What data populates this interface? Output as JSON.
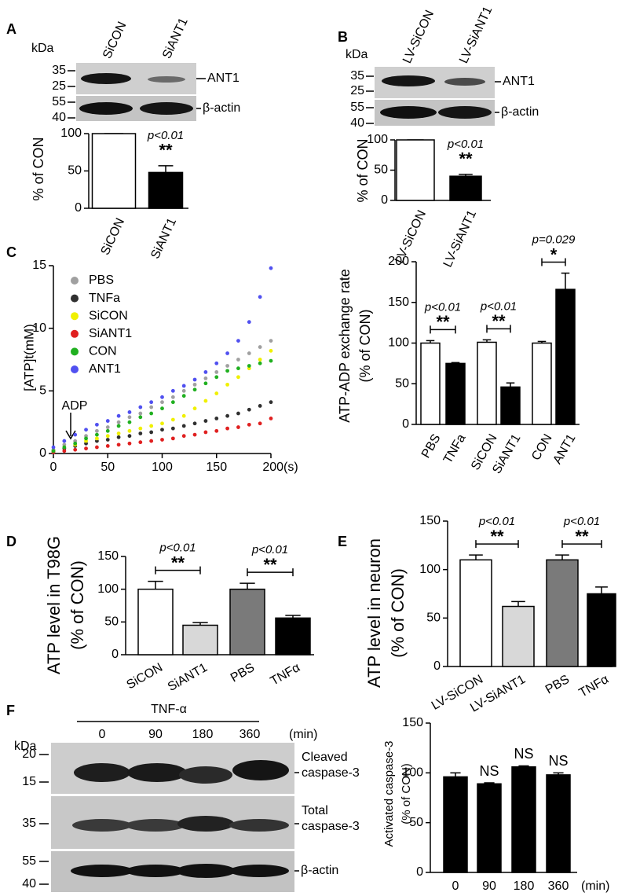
{
  "panel_labels": [
    "A",
    "B",
    "C",
    "D",
    "E",
    "F"
  ],
  "blots": [
    {
      "unit": "kDa",
      "lanes": [
        "SiCON",
        "SiANT1"
      ],
      "strips": [
        {
          "markers": [
            35,
            25
          ],
          "label": [
            "ANT1"
          ]
        },
        {
          "markers": [
            55,
            40
          ],
          "label": [
            "β-actin"
          ]
        }
      ]
    },
    {
      "unit": "kDa",
      "lanes": [
        "LV-SiCON",
        "LV-SiANT1"
      ],
      "strips": [
        {
          "markers": [
            35,
            25
          ],
          "label": [
            "ANT1"
          ]
        },
        {
          "markers": [
            55,
            40
          ],
          "label": [
            "β-actin"
          ]
        }
      ]
    },
    {
      "unit": "kDa",
      "treatment": "TNF-α",
      "lanes": [
        "0",
        "90",
        "180",
        "360"
      ],
      "time_unit": "(min)",
      "strips": [
        {
          "markers": [
            20,
            15
          ],
          "label": [
            "Cleaved",
            "caspase-3"
          ]
        },
        {
          "markers": [
            35
          ],
          "label": [
            "Total",
            "caspase-3"
          ]
        },
        {
          "markers": [
            55,
            40
          ],
          "label": [
            "β-actin"
          ]
        }
      ]
    }
  ],
  "chart_data": [
    {
      "type": "bar",
      "ylabel": [
        "% of CON"
      ],
      "categories": [
        "SiCON",
        "SiANT1"
      ],
      "values": [
        100,
        48
      ],
      "errors": [
        0,
        9
      ],
      "colors": [
        "#ffffff",
        "#000000"
      ],
      "ylim": [
        0,
        100
      ],
      "yticks": [
        0,
        50,
        100
      ],
      "annotations": [
        {
          "p": "p<0.01",
          "stars": "**"
        }
      ]
    },
    {
      "type": "bar",
      "ylabel": [
        "% of CON"
      ],
      "categories": [
        "LV-SiCON",
        "LV-SiANT1"
      ],
      "values": [
        100,
        40
      ],
      "errors": [
        0,
        3
      ],
      "colors": [
        "#ffffff",
        "#000000"
      ],
      "ylim": [
        0,
        100
      ],
      "yticks": [
        0,
        50,
        100
      ],
      "annotations": [
        {
          "p": "p<0.01",
          "stars": "**"
        }
      ]
    },
    {
      "type": "scatter",
      "ylabel": [
        "[ATP]t(mM)"
      ],
      "x": [
        0,
        10,
        20,
        30,
        40,
        50,
        60,
        70,
        80,
        90,
        100,
        110,
        120,
        130,
        140,
        150,
        160,
        170,
        180,
        190,
        200
      ],
      "xlim": [
        0,
        200
      ],
      "xticks": [
        0,
        50,
        100,
        150,
        {
          "value": 200,
          "label": "200(s)"
        }
      ],
      "ylim": [
        0,
        15
      ],
      "yticks": [
        0,
        5,
        10,
        15
      ],
      "annotations": [
        "ADP"
      ],
      "series": [
        {
          "name": "PBS",
          "color": "#a0a0a0",
          "values": [
            0.3,
            0.7,
            1.0,
            1.4,
            1.8,
            2.1,
            2.5,
            2.9,
            3.2,
            3.7,
            4.1,
            4.5,
            5.0,
            5.5,
            6.0,
            6.5,
            7.0,
            7.5,
            8.0,
            8.5,
            9.0
          ]
        },
        {
          "name": "TNFa",
          "color": "#303030",
          "values": [
            0.2,
            0.4,
            0.6,
            0.8,
            1.0,
            1.1,
            1.3,
            1.4,
            1.6,
            1.7,
            1.9,
            2.0,
            2.2,
            2.4,
            2.6,
            2.8,
            3.0,
            3.2,
            3.5,
            3.8,
            4.1
          ]
        },
        {
          "name": "SiCON",
          "color": "#f0f000",
          "values": [
            0.2,
            0.5,
            0.7,
            1.0,
            1.2,
            1.4,
            1.6,
            1.8,
            2.0,
            2.2,
            2.4,
            2.7,
            3.0,
            3.6,
            4.2,
            4.8,
            5.5,
            6.1,
            6.8,
            7.5,
            8.2
          ]
        },
        {
          "name": "SiANT1",
          "color": "#e02020",
          "values": [
            0.1,
            0.2,
            0.3,
            0.4,
            0.5,
            0.6,
            0.7,
            0.8,
            0.9,
            1.0,
            1.1,
            1.2,
            1.4,
            1.5,
            1.7,
            1.8,
            2.0,
            2.1,
            2.3,
            2.4,
            2.8
          ]
        },
        {
          "name": "CON",
          "color": "#20b020",
          "values": [
            0.2,
            0.5,
            0.8,
            1.2,
            1.5,
            1.8,
            2.2,
            2.5,
            2.9,
            3.2,
            3.6,
            4.1,
            4.6,
            5.1,
            5.6,
            6.1,
            6.6,
            6.8,
            7.0,
            7.2,
            7.4
          ]
        },
        {
          "name": "ANT1",
          "color": "#5050f0",
          "values": [
            0.5,
            1.0,
            1.5,
            1.9,
            2.3,
            2.6,
            3.0,
            3.3,
            3.7,
            4.1,
            4.5,
            5.0,
            5.4,
            5.9,
            6.5,
            7.2,
            8.0,
            9.0,
            10.5,
            12.5,
            14.8
          ]
        }
      ]
    },
    {
      "type": "bar",
      "ylabel": [
        "ATP-ADP exchange rate",
        "(% of CON)"
      ],
      "categories": [
        "PBS",
        "TNFa",
        "SiCON",
        "SiANT1",
        "CON",
        "ANT1"
      ],
      "values": [
        100,
        75,
        101,
        46,
        100,
        166
      ],
      "errors": [
        3,
        1,
        3,
        5,
        2,
        20
      ],
      "colors": [
        "#ffffff",
        "#000000",
        "#ffffff",
        "#000000",
        "#ffffff",
        "#000000"
      ],
      "ylim": [
        0,
        200
      ],
      "yticks": [
        0,
        50,
        100,
        150,
        200
      ],
      "annotations": [
        {
          "p": "p<0.01",
          "stars": "**"
        },
        {
          "p": "p<0.01",
          "stars": "**"
        },
        {
          "p": "p=0.029",
          "stars": "*"
        }
      ]
    },
    {
      "type": "bar",
      "ylabel": [
        "ATP level  in T98G",
        "(% of CON)"
      ],
      "categories": [
        "SiCON",
        "SiANT1",
        "PBS",
        "TNFα"
      ],
      "values": [
        100,
        45,
        100,
        56
      ],
      "errors": [
        12,
        4,
        9,
        4
      ],
      "colors": [
        "#ffffff",
        "#d8d8d8",
        "#7a7a7a",
        "#000000"
      ],
      "ylim": [
        0,
        150
      ],
      "yticks": [
        0,
        50,
        100,
        150
      ],
      "annotations": [
        {
          "p": "p<0.01",
          "stars": "**"
        },
        {
          "p": "p<0.01",
          "stars": "**"
        }
      ]
    },
    {
      "type": "bar",
      "ylabel": [
        "ATP level  in neuron",
        "(% of CON)"
      ],
      "categories": [
        "LV-SiCON",
        "LV-SiANT1",
        "PBS",
        "TNFα"
      ],
      "values": [
        110,
        62,
        110,
        75
      ],
      "errors": [
        5,
        5,
        5,
        7
      ],
      "colors": [
        "#ffffff",
        "#d8d8d8",
        "#7a7a7a",
        "#000000"
      ],
      "ylim": [
        0,
        150
      ],
      "yticks": [
        0,
        50,
        100,
        150
      ],
      "annotations": [
        {
          "p": "p<0.01",
          "stars": "**"
        },
        {
          "p": "p<0.01",
          "stars": "**"
        }
      ]
    },
    {
      "type": "bar",
      "ylabel": [
        "Activated caspase-3",
        "(% of CON)"
      ],
      "categories": [
        "0",
        "90",
        "180",
        "360"
      ],
      "xunit": "(min)",
      "values": [
        96,
        89,
        106,
        98
      ],
      "errors": [
        4,
        1,
        1,
        2
      ],
      "colors": [
        "#000000",
        "#000000",
        "#000000",
        "#000000"
      ],
      "ylim": [
        0,
        150
      ],
      "yticks": [
        0,
        50,
        100,
        150
      ],
      "annotations": [
        "NS",
        "NS",
        "NS"
      ]
    }
  ]
}
